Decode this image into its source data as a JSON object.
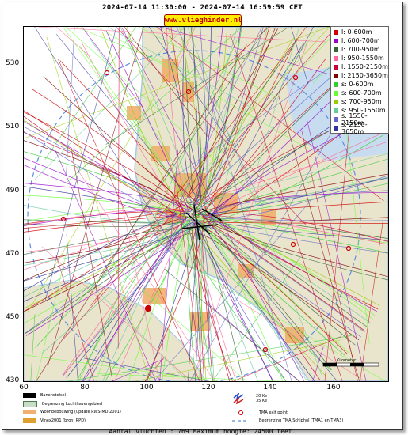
{
  "header": {
    "time_range": "2024-07-14 11:30:00 - 2024-07-14 16:59:59 CET",
    "site": "www.vlieghinder.nl"
  },
  "axes": {
    "y_ticks": [
      "530",
      "510",
      "490",
      "470",
      "450",
      "430"
    ],
    "x_ticks": [
      "60",
      "80",
      "100",
      "120",
      "140",
      "160"
    ]
  },
  "legend": {
    "items": [
      {
        "label": "l: 0-600m",
        "color": "#cc0000"
      },
      {
        "label": "l: 600-700m",
        "color": "#9900cc"
      },
      {
        "label": "l: 700-950m",
        "color": "#336633"
      },
      {
        "label": "l: 950-1550m",
        "color": "#ff6699"
      },
      {
        "label": "l: 1550-2150m",
        "color": "#cc0033"
      },
      {
        "label": "l: 2150-3650m",
        "color": "#800000"
      },
      {
        "label": "s: 0-600m",
        "color": "#33cc33"
      },
      {
        "label": "s: 600-700m",
        "color": "#66ff33"
      },
      {
        "label": "s: 700-950m",
        "color": "#99cc00"
      },
      {
        "label": "s: 950-1550m",
        "color": "#66cc99"
      },
      {
        "label": "s: 1550-2150m",
        "color": "#6666cc"
      },
      {
        "label": "s: 2150-3650m",
        "color": "#333399"
      }
    ]
  },
  "scale_label": "Kilometer",
  "bottom_legend": {
    "runway": "Banenstelsel",
    "airport_boundary": "Begrenzing Luchthavengebied",
    "housing": "Woonbebouwing (update RWS-MD 2001)",
    "vinex": "Vinex2001 (bron: RPD)",
    "noise_20": "20 Ke",
    "noise_35": "35 Ke",
    "tma_exit": "TMA exit point",
    "tma_boundary": "Begrenzing TMA Schiphol (TMA1 en TMA3)"
  },
  "footer": "Aantal vluchten : 769 Maximum hoogte: 24500 feet.",
  "colors": {
    "land": "#e9e4cc",
    "urban": "#f0b070",
    "water_coast": "#a7c8e8",
    "tma_boundary": "#5a8ee0"
  }
}
